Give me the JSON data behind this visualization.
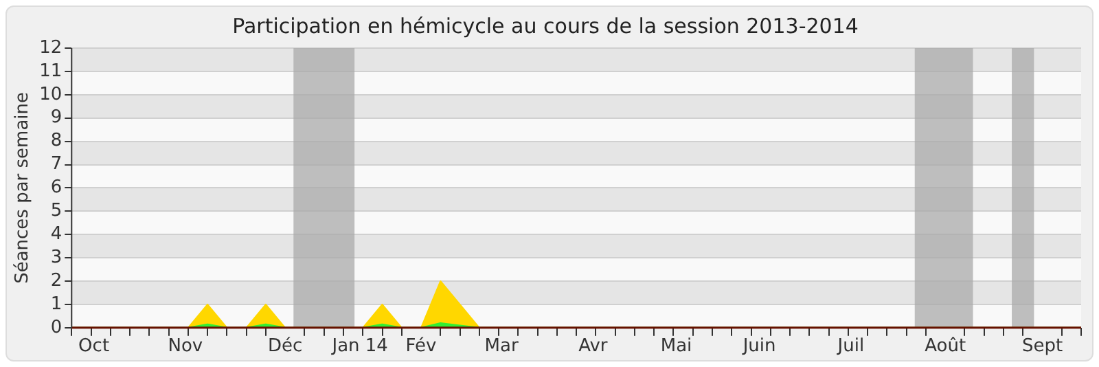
{
  "chart_data": {
    "type": "area",
    "title": "Participation en hémicycle au cours de la session 2013-2014",
    "ylabel": "Séances par semaine",
    "x": [
      "2013-09-30",
      "2013-10-07",
      "2013-10-14",
      "2013-10-21",
      "2013-10-28",
      "2013-11-04",
      "2013-11-11",
      "2013-11-18",
      "2013-11-25",
      "2013-12-02",
      "2013-12-09",
      "2013-12-16",
      "2013-12-23",
      "2013-12-30",
      "2014-01-06",
      "2014-01-13",
      "2014-01-20",
      "2014-01-27",
      "2014-02-03",
      "2014-02-10",
      "2014-02-17",
      "2014-02-24",
      "2014-03-03",
      "2014-03-10",
      "2014-03-17",
      "2014-03-24",
      "2014-03-31",
      "2014-04-07",
      "2014-04-14",
      "2014-04-21",
      "2014-04-28",
      "2014-05-05",
      "2014-05-12",
      "2014-05-19",
      "2014-05-26",
      "2014-06-02",
      "2014-06-09",
      "2014-06-16",
      "2014-06-23",
      "2014-06-30",
      "2014-07-07",
      "2014-07-14",
      "2014-07-21",
      "2014-07-28",
      "2014-08-04",
      "2014-08-11",
      "2014-08-18",
      "2014-08-25",
      "2014-09-01",
      "2014-09-08",
      "2014-09-15",
      "2014-09-22",
      "2014-09-29"
    ],
    "series": [
      {
        "color": "#ffd700",
        "values": [
          0,
          0,
          0,
          0,
          0,
          0,
          0,
          1,
          0,
          0,
          1,
          0,
          0,
          0,
          0,
          0,
          1,
          0,
          0,
          2,
          1,
          0,
          0,
          0,
          0,
          0,
          0,
          0,
          0,
          0,
          0,
          0,
          0,
          0,
          0,
          0,
          0,
          0,
          0,
          0,
          0,
          0,
          0,
          0,
          0,
          0,
          0,
          0,
          0,
          0,
          0,
          0,
          0
        ]
      },
      {
        "color": "#33ee33",
        "values": [
          0,
          0,
          0,
          0,
          0,
          0,
          0,
          0.15,
          0,
          0,
          0.15,
          0,
          0,
          0,
          0,
          0,
          0.15,
          0,
          0,
          0.2,
          0.1,
          0,
          0,
          0,
          0,
          0,
          0,
          0,
          0,
          0,
          0,
          0,
          0,
          0,
          0,
          0,
          0,
          0,
          0,
          0,
          0,
          0,
          0,
          0,
          0,
          0,
          0,
          0,
          0,
          0,
          0,
          0,
          0
        ]
      }
    ],
    "xlim": [
      "2013-09-30",
      "2014-09-29"
    ],
    "xticks": [
      {
        "value": "2013-09-30",
        "label": null
      },
      {
        "value": "2013-10-07",
        "label": null
      },
      {
        "value": "2013-10-08",
        "label": "Oct"
      },
      {
        "value": "2013-10-14",
        "label": null
      },
      {
        "value": "2013-10-21",
        "label": null
      },
      {
        "value": "2013-10-28",
        "label": null
      },
      {
        "value": "2013-11-04",
        "label": null
      },
      {
        "value": "2013-11-10",
        "label": "Nov"
      },
      {
        "value": "2013-11-11",
        "label": null
      },
      {
        "value": "2013-11-18",
        "label": null
      },
      {
        "value": "2013-11-25",
        "label": null
      },
      {
        "value": "2013-12-02",
        "label": null
      },
      {
        "value": "2013-12-09",
        "label": null
      },
      {
        "value": "2013-12-16",
        "label": "Déc"
      },
      {
        "value": "2013-12-23",
        "label": null
      },
      {
        "value": "2013-12-30",
        "label": null
      },
      {
        "value": "2014-01-06",
        "label": null
      },
      {
        "value": "2014-01-12",
        "label": "Jan 14"
      },
      {
        "value": "2014-01-13",
        "label": null
      },
      {
        "value": "2014-01-20",
        "label": null
      },
      {
        "value": "2014-01-27",
        "label": null
      },
      {
        "value": "2014-02-03",
        "label": "Fév"
      },
      {
        "value": "2014-02-10",
        "label": null
      },
      {
        "value": "2014-02-17",
        "label": null
      },
      {
        "value": "2014-02-24",
        "label": null
      },
      {
        "value": "2014-03-03",
        "label": null
      },
      {
        "value": "2014-03-04",
        "label": "Mar"
      },
      {
        "value": "2014-03-10",
        "label": null
      },
      {
        "value": "2014-03-17",
        "label": null
      },
      {
        "value": "2014-03-24",
        "label": null
      },
      {
        "value": "2014-03-31",
        "label": null
      },
      {
        "value": "2014-04-06",
        "label": "Avr"
      },
      {
        "value": "2014-04-07",
        "label": null
      },
      {
        "value": "2014-04-14",
        "label": null
      },
      {
        "value": "2014-04-21",
        "label": null
      },
      {
        "value": "2014-04-28",
        "label": null
      },
      {
        "value": "2014-05-05",
        "label": null
      },
      {
        "value": "2014-05-06",
        "label": "Mai"
      },
      {
        "value": "2014-05-12",
        "label": null
      },
      {
        "value": "2014-05-19",
        "label": null
      },
      {
        "value": "2014-05-26",
        "label": null
      },
      {
        "value": "2014-06-02",
        "label": null
      },
      {
        "value": "2014-06-05",
        "label": "Juin"
      },
      {
        "value": "2014-06-09",
        "label": null
      },
      {
        "value": "2014-06-16",
        "label": null
      },
      {
        "value": "2014-06-23",
        "label": null
      },
      {
        "value": "2014-06-30",
        "label": null
      },
      {
        "value": "2014-07-07",
        "label": null
      },
      {
        "value": "2014-07-08",
        "label": "Juil"
      },
      {
        "value": "2014-07-14",
        "label": null
      },
      {
        "value": "2014-07-21",
        "label": null
      },
      {
        "value": "2014-07-28",
        "label": null
      },
      {
        "value": "2014-08-04",
        "label": null
      },
      {
        "value": "2014-08-11",
        "label": "Août"
      },
      {
        "value": "2014-08-18",
        "label": null
      },
      {
        "value": "2014-08-25",
        "label": null
      },
      {
        "value": "2014-09-01",
        "label": null
      },
      {
        "value": "2014-09-08",
        "label": null
      },
      {
        "value": "2014-09-15",
        "label": "Sept"
      },
      {
        "value": "2014-09-22",
        "label": null
      },
      {
        "value": "2014-09-29",
        "label": null
      }
    ],
    "ylim": [
      0,
      12
    ],
    "yticks": [
      0,
      1,
      2,
      3,
      4,
      5,
      6,
      7,
      8,
      9,
      10,
      11,
      12
    ],
    "bands": [
      {
        "axis": "x",
        "from": "2013-12-19",
        "to": "2014-01-10",
        "color": "#aaaaaa"
      },
      {
        "axis": "x",
        "from": "2014-07-31",
        "to": "2014-08-21",
        "color": "#aaaaaa"
      },
      {
        "axis": "x",
        "from": "2014-09-04",
        "to": "2014-09-12",
        "color": "#aaaaaa"
      }
    ],
    "grid": "y"
  }
}
